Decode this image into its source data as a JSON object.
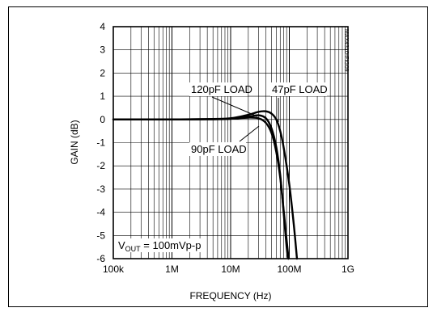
{
  "chart_data": {
    "type": "line",
    "xlabel": "FREQUENCY (Hz)",
    "ylabel": "GAIN (dB)",
    "x_scale": "log",
    "xlim": [
      100000,
      1000000000
    ],
    "ylim": [
      -6,
      4
    ],
    "grid": true,
    "x_tick_labels": [
      "100k",
      "1M",
      "10M",
      "100M",
      "1G"
    ],
    "y_tick_labels": [
      "4",
      "3",
      "2",
      "1",
      "0",
      "-1",
      "-2",
      "-3",
      "-4",
      "-5",
      "-6"
    ],
    "series": [
      {
        "name": "120pF LOAD",
        "points": [
          [
            100000,
            0
          ],
          [
            1000000,
            0
          ],
          [
            5000000,
            0.01
          ],
          [
            10000000,
            0.03
          ],
          [
            20000000,
            0.12
          ],
          [
            30000000,
            0.18
          ],
          [
            40000000,
            0.05
          ],
          [
            50000000,
            -0.4
          ],
          [
            60000000,
            -1.2
          ],
          [
            70000000,
            -2.4
          ],
          [
            80000000,
            -4.0
          ],
          [
            90000000,
            -5.5
          ],
          [
            96000000,
            -6
          ]
        ]
      },
      {
        "name": "90pF LOAD",
        "points": [
          [
            100000,
            0
          ],
          [
            1000000,
            0
          ],
          [
            5000000,
            0.01
          ],
          [
            10000000,
            0.03
          ],
          [
            20000000,
            0.08
          ],
          [
            30000000,
            0.05
          ],
          [
            40000000,
            -0.15
          ],
          [
            50000000,
            -0.6
          ],
          [
            60000000,
            -1.4
          ],
          [
            70000000,
            -2.5
          ],
          [
            80000000,
            -3.9
          ],
          [
            90000000,
            -5.2
          ],
          [
            97000000,
            -6
          ]
        ]
      },
      {
        "name": "47pF LOAD",
        "points": [
          [
            100000,
            0
          ],
          [
            1000000,
            0
          ],
          [
            5000000,
            0.02
          ],
          [
            10000000,
            0.05
          ],
          [
            20000000,
            0.2
          ],
          [
            30000000,
            0.33
          ],
          [
            40000000,
            0.35
          ],
          [
            50000000,
            0.25
          ],
          [
            60000000,
            0.0
          ],
          [
            70000000,
            -0.5
          ],
          [
            80000000,
            -1.2
          ],
          [
            100000000,
            -2.8
          ],
          [
            120000000,
            -4.6
          ],
          [
            135000000,
            -6
          ]
        ]
      }
    ],
    "annotations": {
      "a120": "120pF LOAD",
      "a47": "47pF LOAD",
      "a90": "90pF LOAD",
      "vout_prefix": "V",
      "vout_sub": "OUT",
      "vout_rest": " = 100mVp-p"
    },
    "figure_id": "MAX4310-FIG09"
  }
}
